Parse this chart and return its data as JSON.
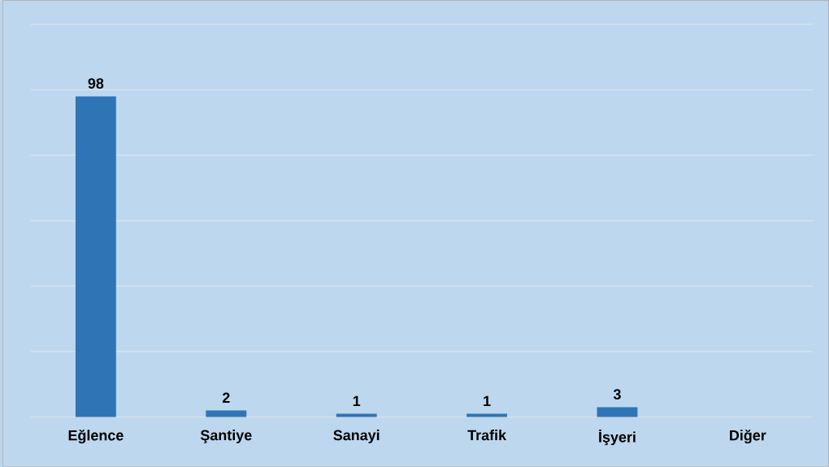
{
  "chart_data": {
    "type": "bar",
    "categories": [
      "Eğlence",
      "Şantiye",
      "Sanayi",
      "Trafik",
      "İşyeri",
      "Diğer"
    ],
    "values": [
      98,
      2,
      1,
      1,
      3,
      0
    ],
    "value_labels": [
      "98",
      "2",
      "1",
      "1",
      "3",
      null
    ],
    "color": "#2e75b6",
    "ylim": [
      0,
      120
    ],
    "yticks": [
      {
        "value": 0,
        "label": null
      },
      {
        "value": 20,
        "label": null
      },
      {
        "value": 40,
        "label": null
      },
      {
        "value": 60,
        "label": null
      },
      {
        "value": 80,
        "label": null
      },
      {
        "value": 100,
        "label": null
      },
      {
        "value": 120,
        "label": null
      }
    ],
    "tick_labels": "x",
    "grid": "y"
  }
}
